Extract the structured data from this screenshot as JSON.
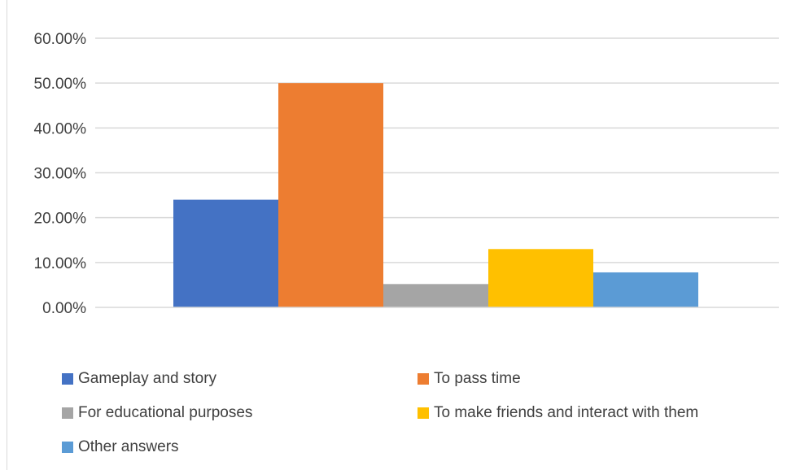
{
  "chart_data": {
    "type": "bar",
    "y_tick_labels": [
      "0.00%",
      "10.00%",
      "20.00%",
      "30.00%",
      "40.00%",
      "50.00%",
      "60.00%"
    ],
    "ylim": [
      0,
      60
    ],
    "grid": true,
    "legend_placement": "bottom",
    "series": [
      {
        "name": "Gameplay and story",
        "value": 24,
        "color": "#4472C4"
      },
      {
        "name": "To pass time",
        "value": 50,
        "color": "#ED7D31"
      },
      {
        "name": "For educational purposes",
        "value": 5.2,
        "color": "#A5A5A5"
      },
      {
        "name": "To make friends and interact with them",
        "value": 13,
        "color": "#FFC000"
      },
      {
        "name": "Other answers",
        "value": 7.8,
        "color": "#5B9BD5"
      }
    ]
  }
}
